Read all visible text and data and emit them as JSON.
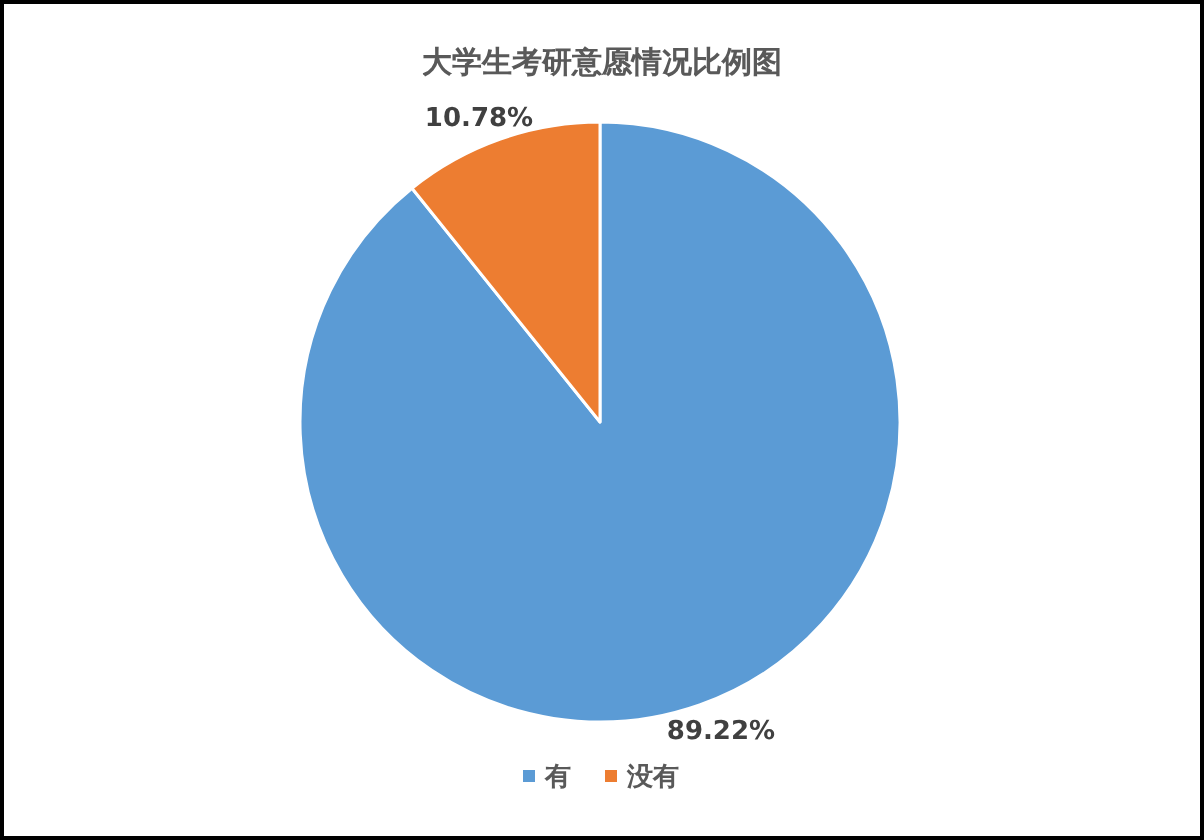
{
  "chart_data": {
    "type": "pie",
    "title": "大学生考研意愿情况比例图",
    "categories": [
      "有",
      "没有"
    ],
    "values": [
      89.22,
      10.78
    ],
    "colors": [
      "#5b9bd5",
      "#ed7d31"
    ],
    "value_labels": [
      "89.22%",
      "10.78%"
    ],
    "legend": "bottom"
  }
}
